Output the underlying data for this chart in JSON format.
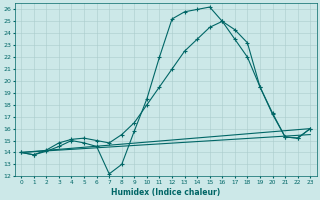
{
  "xlabel": "Humidex (Indice chaleur)",
  "xlim": [
    -0.5,
    23.5
  ],
  "ylim": [
    12,
    26.5
  ],
  "xticks": [
    0,
    1,
    2,
    3,
    4,
    5,
    6,
    7,
    8,
    9,
    10,
    11,
    12,
    13,
    14,
    15,
    16,
    17,
    18,
    19,
    20,
    21,
    22,
    23
  ],
  "yticks": [
    12,
    13,
    14,
    15,
    16,
    17,
    18,
    19,
    20,
    21,
    22,
    23,
    24,
    25,
    26
  ],
  "bg_color": "#cce8e8",
  "grid_color": "#aacccc",
  "line_color": "#006666",
  "line1_x": [
    0,
    1,
    2,
    3,
    4,
    5,
    6,
    7,
    8,
    9,
    10,
    11,
    12,
    13,
    14,
    15,
    16,
    17,
    18,
    19,
    20,
    21,
    22,
    23
  ],
  "line1_y": [
    14.0,
    13.8,
    14.1,
    14.5,
    15.0,
    14.8,
    14.5,
    12.2,
    13.0,
    15.8,
    18.5,
    22.0,
    25.2,
    25.8,
    26.0,
    26.2,
    25.0,
    24.3,
    23.2,
    19.5,
    17.2,
    15.3,
    15.2,
    16.0
  ],
  "line2_x": [
    0,
    1,
    2,
    3,
    4,
    5,
    6,
    7,
    8,
    9,
    10,
    11,
    12,
    13,
    14,
    15,
    16,
    17,
    18,
    19,
    20,
    21,
    22,
    23
  ],
  "line2_y": [
    14.0,
    13.8,
    14.2,
    14.8,
    15.1,
    15.2,
    15.0,
    14.8,
    15.5,
    16.5,
    18.0,
    19.5,
    21.0,
    22.5,
    23.5,
    24.5,
    25.0,
    23.5,
    22.0,
    19.5,
    17.3,
    15.3,
    15.2,
    16.0
  ],
  "line3_x": [
    0,
    23
  ],
  "line3_y": [
    14.0,
    16.0
  ],
  "line4_x": [
    0,
    23
  ],
  "line4_y": [
    14.0,
    15.5
  ]
}
